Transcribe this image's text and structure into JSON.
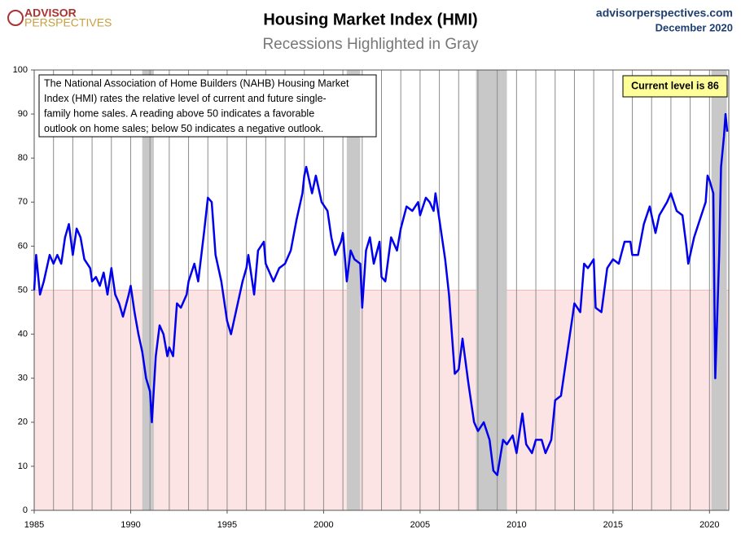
{
  "chart_data": {
    "type": "line",
    "title": "Housing Market Index (HMI)",
    "subtitle": "Recessions Highlighted in Gray",
    "logo": [
      "ADVISOR",
      "PERSPECTIVES"
    ],
    "source": "advisorperspectives.com",
    "date": "December 2020",
    "note_lines": [
      "The National Association of Home Builders (NAHB) Housing Market",
      "Index (HMI) rates the relative level of current and future single-",
      "family home sales. A reading above 50 indicates a favorable",
      "outlook on home sales; below 50 indicates a negative outlook."
    ],
    "callout": "Current level is 86",
    "threshold": 50,
    "recessions": [
      [
        1990.6,
        1991.2
      ],
      [
        2001.2,
        2001.9
      ],
      [
        2007.9,
        2009.5
      ],
      [
        2020.1,
        2020.9
      ]
    ],
    "xlim": [
      1985,
      2021
    ],
    "ylim": [
      0,
      100
    ],
    "xticks": [
      1985,
      1990,
      1995,
      2000,
      2005,
      2010,
      2015,
      2020
    ],
    "xgrid": [
      1985,
      1986,
      1987,
      1988,
      1989,
      1990,
      1991,
      1992,
      1993,
      1994,
      1995,
      1996,
      1997,
      1998,
      1999,
      2000,
      2001,
      2002,
      2003,
      2004,
      2005,
      2006,
      2007,
      2008,
      2009,
      2010,
      2011,
      2012,
      2013,
      2014,
      2015,
      2016,
      2017,
      2018,
      2019,
      2020
    ],
    "yticks": [
      0,
      10,
      20,
      30,
      40,
      50,
      60,
      70,
      80,
      90,
      100
    ],
    "series": [
      {
        "name": "HMI",
        "color": "#0000ee",
        "x": [
          1985.0,
          1985.1,
          1985.3,
          1985.5,
          1985.8,
          1986.0,
          1986.2,
          1986.4,
          1986.6,
          1986.8,
          1987.0,
          1987.2,
          1987.4,
          1987.6,
          1987.9,
          1988.0,
          1988.2,
          1988.4,
          1988.6,
          1988.8,
          1989.0,
          1989.2,
          1989.4,
          1989.6,
          1989.9,
          1990.0,
          1990.2,
          1990.4,
          1990.6,
          1990.8,
          1991.0,
          1991.1,
          1991.3,
          1991.5,
          1991.7,
          1991.9,
          1992.0,
          1992.2,
          1992.4,
          1992.6,
          1992.9,
          1993.0,
          1993.3,
          1993.5,
          1993.8,
          1994.0,
          1994.2,
          1994.4,
          1994.7,
          1995.0,
          1995.2,
          1995.5,
          1995.8,
          1996.0,
          1996.1,
          1996.4,
          1996.6,
          1996.9,
          1997.0,
          1997.4,
          1997.7,
          1998.0,
          1998.3,
          1998.6,
          1998.9,
          1999.0,
          1999.1,
          1999.4,
          1999.6,
          1999.9,
          2000.2,
          2000.4,
          2000.6,
          2000.9,
          2001.0,
          2001.2,
          2001.4,
          2001.6,
          2001.9,
          2002.0,
          2002.2,
          2002.4,
          2002.6,
          2002.9,
          2003.0,
          2003.2,
          2003.5,
          2003.8,
          2004.0,
          2004.3,
          2004.6,
          2004.9,
          2005.0,
          2005.3,
          2005.5,
          2005.7,
          2005.8,
          2006.0,
          2006.3,
          2006.5,
          2006.8,
          2007.0,
          2007.2,
          2007.5,
          2007.8,
          2008.0,
          2008.3,
          2008.6,
          2008.8,
          2009.0,
          2009.3,
          2009.5,
          2009.8,
          2010.0,
          2010.3,
          2010.5,
          2010.8,
          2011.0,
          2011.3,
          2011.5,
          2011.8,
          2012.0,
          2012.3,
          2012.6,
          2012.9,
          2013.0,
          2013.3,
          2013.5,
          2013.7,
          2014.0,
          2014.1,
          2014.4,
          2014.7,
          2015.0,
          2015.3,
          2015.6,
          2015.9,
          2016.0,
          2016.3,
          2016.6,
          2016.9,
          2017.0,
          2017.2,
          2017.4,
          2017.8,
          2018.0,
          2018.3,
          2018.6,
          2018.8,
          2018.9,
          2019.0,
          2019.2,
          2019.5,
          2019.8,
          2019.9,
          2020.0,
          2020.2,
          2020.3,
          2020.5,
          2020.6,
          2020.75,
          2020.83,
          2020.92
        ],
        "values": [
          50,
          58,
          49,
          52,
          58,
          56,
          58,
          56,
          62,
          65,
          58,
          64,
          62,
          57,
          55,
          52,
          53,
          51,
          54,
          49,
          55,
          49,
          47,
          44,
          49,
          51,
          45,
          40,
          36,
          30,
          27,
          20,
          35,
          42,
          40,
          35,
          37,
          35,
          47,
          46,
          49,
          52,
          56,
          52,
          63,
          71,
          70,
          58,
          52,
          43,
          40,
          46,
          52,
          55,
          58,
          49,
          59,
          61,
          56,
          52,
          55,
          56,
          59,
          66,
          72,
          76,
          78,
          72,
          76,
          70,
          68,
          62,
          58,
          61,
          63,
          52,
          59,
          57,
          56,
          46,
          59,
          62,
          56,
          61,
          53,
          52,
          62,
          59,
          64,
          69,
          68,
          70,
          67,
          71,
          70,
          68,
          72,
          66,
          57,
          49,
          31,
          32,
          39,
          29,
          20,
          18,
          20,
          16,
          9,
          8,
          16,
          15,
          17,
          13,
          22,
          15,
          13,
          16,
          16,
          13,
          16,
          25,
          26,
          35,
          44,
          47,
          45,
          56,
          55,
          57,
          46,
          45,
          55,
          57,
          56,
          61,
          61,
          58,
          58,
          65,
          69,
          67,
          63,
          67,
          70,
          72,
          68,
          67,
          60,
          56,
          58,
          62,
          66,
          70,
          76,
          75,
          72,
          30,
          58,
          78,
          85,
          90,
          86
        ]
      }
    ]
  }
}
